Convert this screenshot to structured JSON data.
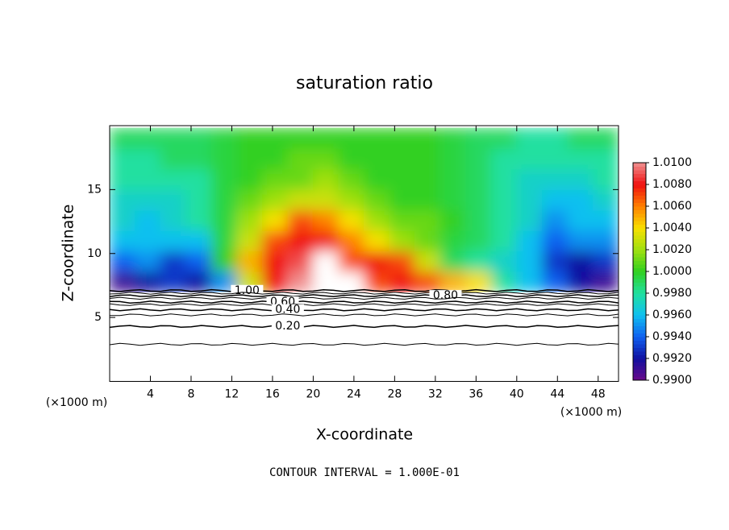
{
  "chart_data": {
    "type": "contour",
    "title": "saturation ratio",
    "xlabel": "X-coordinate",
    "ylabel": "Z-coordinate",
    "x_unit": "(×1000 m)",
    "footer": "CONTOUR INTERVAL = 1.000E-01",
    "xlim": [
      0,
      50
    ],
    "ylim": [
      0,
      20
    ],
    "xticks": [
      4,
      8,
      12,
      16,
      20,
      24,
      28,
      32,
      36,
      40,
      44,
      48
    ],
    "yticks": [
      5,
      10,
      15
    ],
    "x": [
      1.25,
      3.75,
      6.25,
      8.75,
      11.25,
      13.75,
      16.25,
      18.75,
      21.25,
      23.75,
      26.25,
      28.75,
      31.25,
      33.75,
      36.25,
      38.75,
      41.25,
      43.75,
      46.25,
      48.75
    ],
    "z": [
      7.8,
      9.4,
      11,
      12.6,
      14.2,
      15.8,
      17.4,
      19
    ],
    "values": [
      [
        0.991,
        0.992,
        0.993,
        0.992,
        0.995,
        1.003,
        1.008,
        1.01,
        1.011,
        1.011,
        1.007,
        1.008,
        1.007,
        1.005,
        1.004,
        0.998,
        0.996,
        0.994,
        0.992,
        0.991
      ],
      [
        0.994,
        0.995,
        0.993,
        0.994,
        1.0,
        1.005,
        1.008,
        1.009,
        1.011,
        1.007,
        1.008,
        1.007,
        1.003,
        0.999,
        0.998,
        0.997,
        0.996,
        0.993,
        0.992,
        0.993
      ],
      [
        0.996,
        0.996,
        0.996,
        0.996,
        0.9995,
        1.003,
        1.007,
        1.008,
        1.008,
        1.006,
        1.004,
        1.002,
        1.001,
        0.9995,
        0.999,
        0.998,
        0.996,
        0.994,
        0.995,
        0.995
      ],
      [
        0.997,
        0.996,
        0.997,
        0.998,
        0.9995,
        1.002,
        1.004,
        1.007,
        1.006,
        1.004,
        1.002,
        1.001,
        1.001,
        1.0,
        0.999,
        0.998,
        0.997,
        0.995,
        0.996,
        0.996
      ],
      [
        0.997,
        0.997,
        0.997,
        0.998,
        0.9995,
        1.001,
        1.002,
        1.003,
        1.003,
        1.002,
        1.001,
        1.0,
        1.0,
        0.9995,
        0.999,
        0.998,
        0.997,
        0.996,
        0.996,
        0.997
      ],
      [
        0.998,
        0.998,
        0.998,
        0.998,
        0.9995,
        1.0,
        1.001,
        1.001,
        1.002,
        1.001,
        1.0,
        1.0,
        1.0,
        0.9995,
        0.999,
        0.998,
        0.997,
        0.997,
        0.997,
        0.998
      ],
      [
        0.998,
        0.998,
        0.999,
        0.999,
        0.9995,
        1.0,
        1.0,
        1.001,
        1.001,
        1.0,
        1.0,
        1.0,
        1.0,
        0.9995,
        0.999,
        0.998,
        0.998,
        0.998,
        0.998,
        0.998
      ],
      [
        0.999,
        0.999,
        0.999,
        0.999,
        0.9995,
        1.0,
        1.0,
        1.0,
        1.0,
        1.0,
        1.0,
        1.0,
        1.0,
        0.9995,
        0.999,
        0.999,
        0.998,
        0.998,
        0.999,
        0.999
      ]
    ],
    "contours": [
      {
        "level": 1.0,
        "label": "1.00",
        "z": 7.1
      },
      {
        "level": 0.9,
        "z": 6.9
      },
      {
        "level": 0.8,
        "label": "0.80",
        "z": 6.7
      },
      {
        "level": 0.7,
        "z": 6.5
      },
      {
        "level": 0.6,
        "label": "0.60",
        "z": 6.2
      },
      {
        "level": 0.5,
        "z": 6.0
      },
      {
        "level": 0.4,
        "label": "0.40",
        "z": 5.6
      },
      {
        "level": 0.3,
        "z": 5.2
      },
      {
        "level": 0.2,
        "label": "0.20",
        "z": 4.3
      },
      {
        "level": 0.1,
        "z": 2.9
      }
    ],
    "colorbar": {
      "ticks": [
        {
          "value": 0.99,
          "label": "0.9900"
        },
        {
          "value": 0.992,
          "label": "0.9920"
        },
        {
          "value": 0.994,
          "label": "0.9940"
        },
        {
          "value": 0.996,
          "label": "0.9960"
        },
        {
          "value": 0.998,
          "label": "0.9980"
        },
        {
          "value": 1.0,
          "label": "1.0000"
        },
        {
          "value": 1.002,
          "label": "1.0020"
        },
        {
          "value": 1.004,
          "label": "1.0040"
        },
        {
          "value": 1.006,
          "label": "1.0060"
        },
        {
          "value": 1.008,
          "label": "1.0080"
        },
        {
          "value": 1.01,
          "label": "1.0100"
        }
      ],
      "colors": [
        "#6a0a8a",
        "#1010a0",
        "#1060f0",
        "#10c0f0",
        "#20e0a0",
        "#30d020",
        "#a0e010",
        "#f8e000",
        "#ff8000",
        "#f01010",
        "#f09090"
      ]
    }
  }
}
